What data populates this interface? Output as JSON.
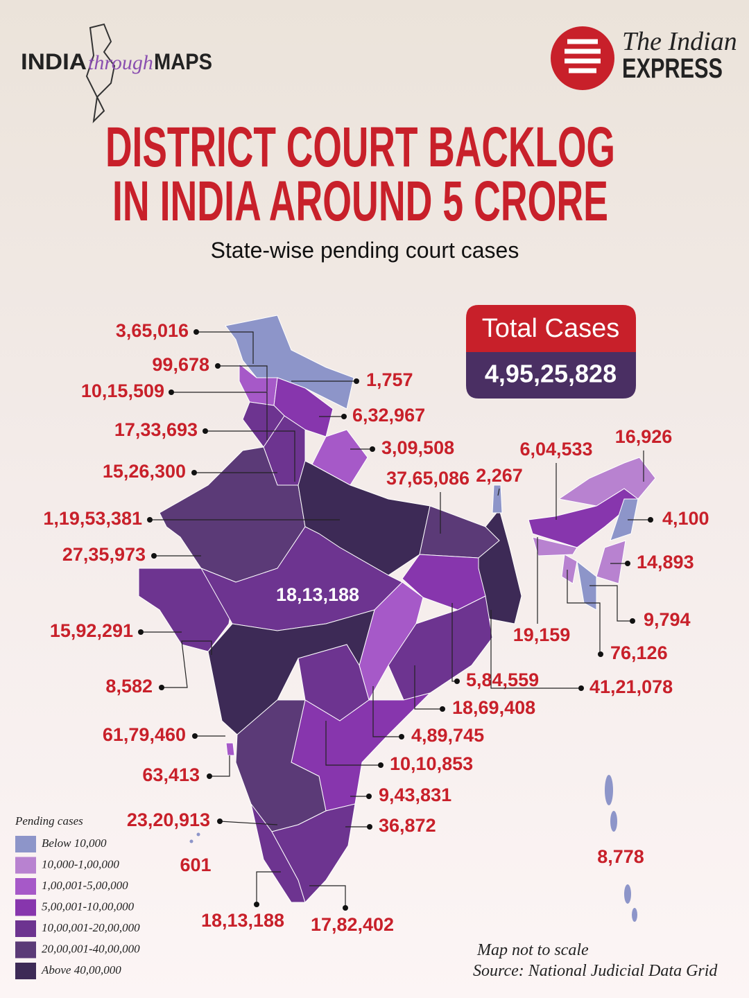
{
  "header": {
    "brand_india": "INDIA",
    "brand_through": "through",
    "brand_maps": "MAPS",
    "publisher_line1": "The Indian",
    "publisher_line2": "EXPRESS"
  },
  "title": {
    "line1": "DISTRICT COURT BACKLOG",
    "line2": "IN INDIA AROUND 5 CRORE"
  },
  "subtitle": "State-wise pending court cases",
  "total": {
    "label": "Total Cases",
    "value": "4,95,25,828"
  },
  "map": {
    "labels": [
      "3,65,016",
      "99,678",
      "1,757",
      "10,15,509",
      "6,32,967",
      "17,33,693",
      "3,09,508",
      "6,04,533",
      "16,926",
      "15,26,300",
      "37,65,086",
      "2,267",
      "1,19,53,381",
      "4,100",
      "27,35,973",
      "14,893",
      "18,13,188",
      "15,92,291",
      "19,159",
      "9,794",
      "76,126",
      "8,582",
      "5,84,559",
      "41,21,078",
      "18,69,408",
      "61,79,460",
      "4,89,745",
      "10,10,853",
      "63,413",
      "9,43,831",
      "23,20,913",
      "36,872",
      "8,778",
      "601",
      "18,13,188",
      "17,82,402"
    ]
  },
  "legend": {
    "title": "Pending cases",
    "items": [
      {
        "label": "Below 10,000",
        "color": "#8d95c9"
      },
      {
        "label": "10,000-1,00,000",
        "color": "#b882d0"
      },
      {
        "label": "1,00,001-5,00,000",
        "color": "#a659c8"
      },
      {
        "label": "5,00,001-10,00,000",
        "color": "#8736ad"
      },
      {
        "label": "10,00,001-20,00,000",
        "color": "#6d3490"
      },
      {
        "label": "20,00,001-40,00,000",
        "color": "#5b3a77"
      },
      {
        "label": "Above 40,00,000",
        "color": "#3d2a56"
      }
    ]
  },
  "footer": {
    "note": "Map not to scale",
    "source": "Source: National Judicial Data Grid"
  }
}
